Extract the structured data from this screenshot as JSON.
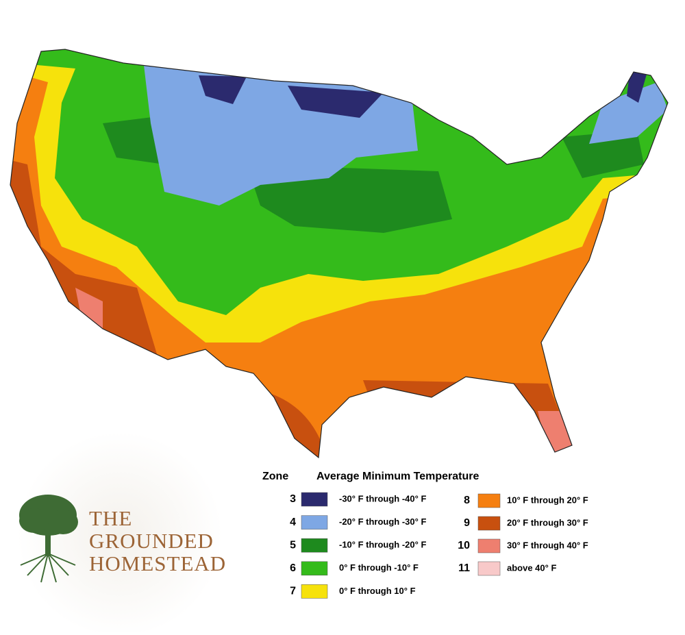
{
  "legend": {
    "zone_header": "Zone",
    "temp_header": "Average Minimum Temperature",
    "zones": [
      {
        "zone": 3,
        "label": "-30° F through -40° F",
        "color": "#2b2a6e"
      },
      {
        "zone": 4,
        "label": "-20° F through -30° F",
        "color": "#7ea7e4"
      },
      {
        "zone": 5,
        "label": "-10° F through -20° F",
        "color": "#1e8a1e"
      },
      {
        "zone": 6,
        "label": "0° F through -10° F",
        "color": "#34bb1b"
      },
      {
        "zone": 7,
        "label": "0° F through 10° F",
        "color": "#f6e20c"
      },
      {
        "zone": 8,
        "label": "10° F through 20° F",
        "color": "#f57f10"
      },
      {
        "zone": 9,
        "label": "20° F through 30° F",
        "color": "#c8500f"
      },
      {
        "zone": 10,
        "label": "30° F through 40° F",
        "color": "#ee7f6f"
      },
      {
        "zone": 11,
        "label": "above 40° F",
        "color": "#f8c9c9"
      }
    ]
  },
  "logo": {
    "line1": "THE",
    "line2": "GROUNDED",
    "line3": "HOMESTEAD"
  }
}
